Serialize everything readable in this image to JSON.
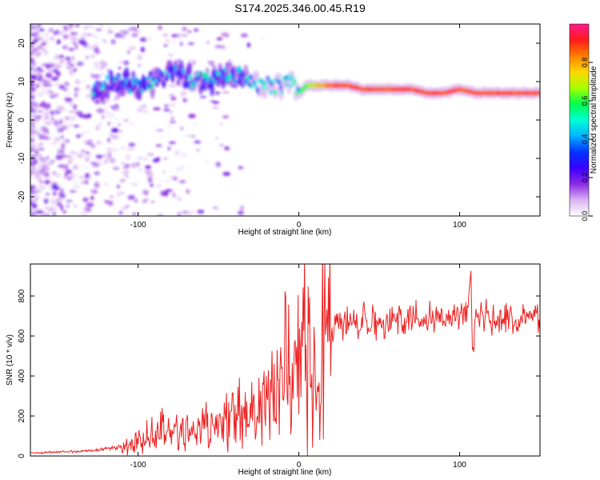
{
  "title": "S174.2025.346.00.45.R19",
  "chart_data": [
    {
      "type": "heatmap",
      "name": "spectrogram",
      "xlabel": "Height of straight line (km)",
      "ylabel": "Frequency (Hz)",
      "xlim": [
        -167,
        150
      ],
      "ylim": [
        -25,
        25
      ],
      "xticks": [
        -100,
        0,
        100
      ],
      "yticks": [
        -20,
        -10,
        0,
        10,
        20
      ],
      "colorbar": {
        "label": "Normalized spectral amplitude",
        "range": [
          0,
          1
        ],
        "ticks": [
          0.0,
          0.2,
          0.4,
          0.6,
          0.8
        ],
        "colormap": [
          "#ffffff",
          "#d9b3f2",
          "#8a2be2",
          "#3a00ff",
          "#0033ff",
          "#00b3ff",
          "#00ffd5",
          "#00ff4c",
          "#a6ff00",
          "#ffd700",
          "#ff8000",
          "#ff1a1a",
          "#ff1a8c"
        ]
      },
      "ridge": {
        "x": [
          -130,
          -120,
          -110,
          -100,
          -90,
          -80,
          -70,
          -60,
          -50,
          -40,
          -30,
          -20,
          -10,
          -5,
          0,
          5,
          10,
          20,
          30,
          40,
          50,
          60,
          70,
          80,
          90,
          100,
          110,
          120,
          130,
          140,
          150
        ],
        "freq": [
          7,
          9,
          10,
          9,
          10,
          12,
          11,
          10,
          11,
          12,
          10,
          9,
          9,
          10,
          7,
          9,
          9,
          9,
          9,
          8,
          8,
          8,
          8,
          7,
          7,
          8,
          7,
          7,
          7,
          7,
          7
        ]
      }
    },
    {
      "type": "line",
      "name": "snr",
      "xlabel": "Height of straight line (km)",
      "ylabel": "SNR (10 * v/v)",
      "xlim": [
        -167,
        150
      ],
      "ylim": [
        0,
        960
      ],
      "xticks": [
        -100,
        0,
        100
      ],
      "yticks": [
        0,
        200,
        400,
        600,
        800
      ],
      "color": "#ee2222",
      "x": [
        -167,
        -150,
        -130,
        -120,
        -110,
        -100,
        -90,
        -80,
        -70,
        -60,
        -50,
        -40,
        -30,
        -20,
        -10,
        -5,
        0,
        5,
        10,
        13,
        15,
        20,
        25,
        30,
        40,
        50,
        60,
        70,
        80,
        90,
        100,
        105,
        107,
        108,
        110,
        120,
        130,
        140,
        150
      ],
      "y": [
        15,
        20,
        25,
        35,
        50,
        70,
        110,
        120,
        130,
        140,
        160,
        170,
        190,
        260,
        380,
        430,
        460,
        470,
        300,
        170,
        550,
        620,
        650,
        660,
        670,
        680,
        690,
        690,
        690,
        700,
        700,
        700,
        940,
        500,
        690,
        690,
        690,
        700,
        700
      ]
    }
  ]
}
